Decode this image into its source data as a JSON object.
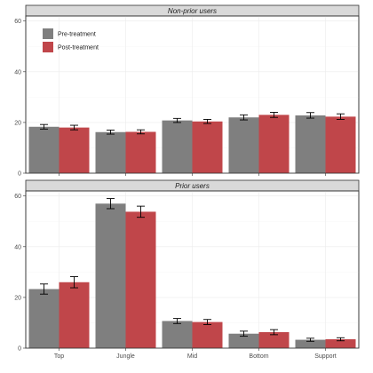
{
  "chart_data": [
    {
      "type": "bar",
      "panel": "Non-prior users",
      "categories": [
        "Top",
        "Jungle",
        "Mid",
        "Bottom",
        "Support"
      ],
      "ylim": [
        0,
        62
      ],
      "yticks": [
        0,
        20,
        40,
        60
      ],
      "grid": true,
      "legend": "top-left",
      "series": [
        {
          "name": "Pre-treatment",
          "color": "#7f7f7f",
          "values": [
            18.3,
            16.2,
            20.8,
            22.0,
            22.8
          ],
          "errors": [
            0.9,
            0.8,
            0.8,
            1.0,
            1.1
          ]
        },
        {
          "name": "Post-treatment",
          "color": "#c0464a",
          "values": [
            18.0,
            16.3,
            20.4,
            23.0,
            22.3
          ],
          "errors": [
            0.9,
            0.8,
            0.8,
            1.0,
            1.1
          ]
        }
      ]
    },
    {
      "type": "bar",
      "panel": "Prior users",
      "categories": [
        "Top",
        "Jungle",
        "Mid",
        "Bottom",
        "Support"
      ],
      "ylim": [
        0,
        62
      ],
      "yticks": [
        0,
        20,
        40,
        60
      ],
      "grid": true,
      "series": [
        {
          "name": "Pre-treatment",
          "color": "#7f7f7f",
          "values": [
            23.3,
            57.0,
            10.7,
            5.7,
            3.3
          ],
          "errors": [
            2.0,
            2.0,
            1.0,
            1.0,
            0.6
          ]
        },
        {
          "name": "Post-treatment",
          "color": "#c0464a",
          "values": [
            26.0,
            53.8,
            10.3,
            6.3,
            3.5
          ],
          "errors": [
            2.2,
            2.2,
            1.0,
            1.0,
            0.6
          ]
        }
      ]
    }
  ]
}
